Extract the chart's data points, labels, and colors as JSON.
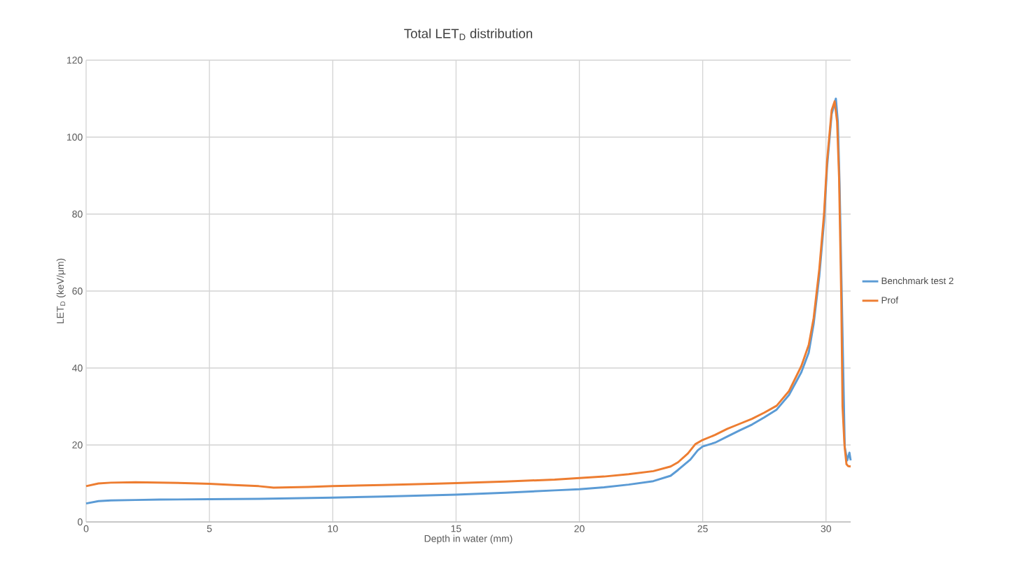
{
  "chart_data": {
    "type": "line",
    "title": "Total LET$_{D}$ distribution",
    "xlabel": "Depth in water (mm)",
    "ylabel": "LET$_{D}$ (keV/μm)",
    "xlim": [
      0,
      31
    ],
    "ylim": [
      0,
      120
    ],
    "xticks": [
      0,
      5,
      10,
      15,
      20,
      25,
      30
    ],
    "yticks": [
      0,
      20,
      40,
      60,
      80,
      100,
      120
    ],
    "grid": true,
    "legend": "right",
    "marker": "none",
    "line_style": "solid",
    "series": [
      {
        "name": "Benchmark test 2",
        "color": "#5b9bd5",
        "x": [
          0,
          0.5,
          1,
          2,
          3,
          5,
          7,
          10,
          12,
          15,
          17,
          19,
          20,
          21,
          22,
          23,
          23.7,
          24,
          24.5,
          24.8,
          25,
          25.5,
          26,
          26.5,
          27,
          27.5,
          28,
          28.5,
          29,
          29.3,
          29.5,
          29.73,
          29.92,
          30.04,
          30.23,
          30.4,
          30.48,
          30.55,
          30.63,
          30.68,
          30.76,
          30.86,
          30.95,
          31
        ],
        "values": [
          4.8,
          5.4,
          5.6,
          5.7,
          5.8,
          5.9,
          6.0,
          6.3,
          6.6,
          7.1,
          7.6,
          8.2,
          8.5,
          9.0,
          9.7,
          10.6,
          12.0,
          13.5,
          16.2,
          18.6,
          19.6,
          20.6,
          22.2,
          23.8,
          25.3,
          27.2,
          29.2,
          33,
          38.9,
          44,
          51.5,
          64,
          78,
          92,
          106,
          110,
          104,
          88,
          null,
          null,
          19.5,
          16,
          18,
          16
        ]
      },
      {
        "name": "Prof",
        "color": "#ed7d31",
        "x": [
          0,
          0.5,
          1,
          2,
          3,
          4,
          5,
          6,
          7,
          7.6,
          9,
          10,
          12,
          14,
          15,
          17,
          19,
          20,
          21,
          22,
          23,
          23.7,
          24,
          24.4,
          24.7,
          25,
          25.5,
          26,
          26.5,
          27,
          27.5,
          28,
          28.5,
          29,
          29.3,
          29.5,
          29.73,
          29.92,
          30.04,
          30.23,
          30.35,
          30.45,
          30.53,
          30.62,
          30.67,
          30.75,
          30.83,
          30.9,
          31
        ],
        "values": [
          9.3,
          10.0,
          10.2,
          10.3,
          10.2,
          10.1,
          9.9,
          9.6,
          9.3,
          8.9,
          9.1,
          9.3,
          9.6,
          9.9,
          10.1,
          10.5,
          11.0,
          11.4,
          11.8,
          12.4,
          13.2,
          14.4,
          15.5,
          17.8,
          20.2,
          21.3,
          22.6,
          24.2,
          25.5,
          26.8,
          28.4,
          30.2,
          34,
          40.5,
          46,
          53,
          65.8,
          80,
          93.5,
          107,
          109.3,
          104,
          89.5,
          57.8,
          30,
          19.9,
          15,
          14.5,
          14.4
        ]
      }
    ]
  }
}
